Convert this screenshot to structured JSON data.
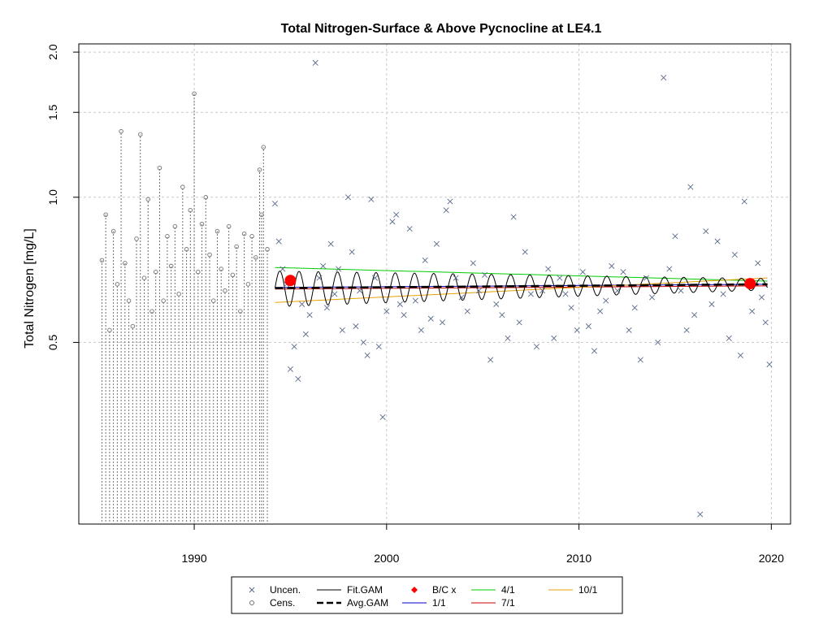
{
  "chart_data": {
    "type": "scatter",
    "title": "Total Nitrogen-Surface & Above Pycnocline at LE4.1",
    "xlabel": "",
    "ylabel": "Total Nitrogen [mg/L]",
    "x_scale": "linear",
    "y_scale": "log",
    "xlim": [
      1984.0,
      2021.0
    ],
    "ylim": [
      0.21,
      2.08
    ],
    "x_ticks": [
      1990,
      2000,
      2010,
      2020
    ],
    "y_ticks": [
      0.5,
      1.0,
      1.5,
      2.0
    ],
    "y_tick_labels": [
      "0.5",
      "1.0",
      "1.5",
      "2.0"
    ],
    "grid": true,
    "legend_position": "bottom-center",
    "legend": [
      {
        "label": "Uncen.",
        "kind": "x-marker",
        "color": "#5a6a8a"
      },
      {
        "label": "Cens.",
        "kind": "o-marker",
        "color": "#707070"
      },
      {
        "label": "Fit.GAM",
        "kind": "line",
        "color": "#000000"
      },
      {
        "label": "Avg.GAM",
        "kind": "dashed-line",
        "color": "#000000"
      },
      {
        "label": "B/C x",
        "kind": "diamond",
        "color": "#ff0000"
      },
      {
        "label": "1/1",
        "kind": "line",
        "color": "#0000cc"
      },
      {
        "label": "4/1",
        "kind": "line",
        "color": "#00cc00"
      },
      {
        "label": "7/1",
        "kind": "line",
        "color": "#cc0000"
      },
      {
        "label": "10/1",
        "kind": "line",
        "color": "#e6a000"
      }
    ],
    "colors": {
      "uncensored": "#5a6a8a",
      "censored": "#707070",
      "fit_gam": "#000000",
      "avg_gam": "#000000",
      "baseline_current": "#ff0000",
      "jan1": "#0000cc",
      "apr1": "#00cc00",
      "jul1": "#cc0000",
      "oct1": "#e6a000",
      "grid": "#c8c8c8"
    },
    "uncensored_points": [
      [
        1994.2,
        0.97
      ],
      [
        1994.4,
        0.81
      ],
      [
        1994.6,
        0.71
      ],
      [
        1994.8,
        0.66
      ],
      [
        1995.0,
        0.44
      ],
      [
        1995.2,
        0.49
      ],
      [
        1995.4,
        0.42
      ],
      [
        1995.6,
        0.6
      ],
      [
        1995.8,
        0.52
      ],
      [
        1996.0,
        0.57
      ],
      [
        1996.3,
        1.9
      ],
      [
        1996.5,
        0.68
      ],
      [
        1996.7,
        0.72
      ],
      [
        1996.9,
        0.59
      ],
      [
        1997.1,
        0.8
      ],
      [
        1997.3,
        0.63
      ],
      [
        1997.5,
        0.71
      ],
      [
        1997.7,
        0.53
      ],
      [
        1998.0,
        1.0
      ],
      [
        1998.2,
        0.77
      ],
      [
        1998.4,
        0.54
      ],
      [
        1998.6,
        0.64
      ],
      [
        1998.8,
        0.5
      ],
      [
        1999.0,
        0.47
      ],
      [
        1999.2,
        0.99
      ],
      [
        1999.4,
        0.68
      ],
      [
        1999.6,
        0.49
      ],
      [
        1999.8,
        0.35
      ],
      [
        2000.0,
        0.58
      ],
      [
        2000.3,
        0.89
      ],
      [
        2000.5,
        0.92
      ],
      [
        2000.7,
        0.6
      ],
      [
        2000.9,
        0.57
      ],
      [
        2001.2,
        0.86
      ],
      [
        2001.5,
        0.61
      ],
      [
        2001.8,
        0.53
      ],
      [
        2002.0,
        0.74
      ],
      [
        2002.3,
        0.56
      ],
      [
        2002.6,
        0.8
      ],
      [
        2002.9,
        0.55
      ],
      [
        2003.1,
        0.94
      ],
      [
        2003.3,
        0.98
      ],
      [
        2003.6,
        0.68
      ],
      [
        2003.9,
        0.62
      ],
      [
        2004.2,
        0.58
      ],
      [
        2004.5,
        0.73
      ],
      [
        2004.8,
        0.64
      ],
      [
        2005.1,
        0.69
      ],
      [
        2005.4,
        0.46
      ],
      [
        2005.7,
        0.6
      ],
      [
        2006.0,
        0.57
      ],
      [
        2006.3,
        0.51
      ],
      [
        2006.6,
        0.91
      ],
      [
        2006.9,
        0.55
      ],
      [
        2007.2,
        0.77
      ],
      [
        2007.5,
        0.63
      ],
      [
        2007.8,
        0.49
      ],
      [
        2008.1,
        0.64
      ],
      [
        2008.4,
        0.71
      ],
      [
        2008.7,
        0.51
      ],
      [
        2009.0,
        0.68
      ],
      [
        2009.3,
        0.63
      ],
      [
        2009.6,
        0.59
      ],
      [
        2009.9,
        0.53
      ],
      [
        2010.2,
        0.7
      ],
      [
        2010.5,
        0.54
      ],
      [
        2010.8,
        0.48
      ],
      [
        2011.1,
        0.58
      ],
      [
        2011.4,
        0.61
      ],
      [
        2011.7,
        0.72
      ],
      [
        2012.0,
        0.64
      ],
      [
        2012.3,
        0.7
      ],
      [
        2012.6,
        0.53
      ],
      [
        2012.9,
        0.59
      ],
      [
        2013.2,
        0.46
      ],
      [
        2013.5,
        0.68
      ],
      [
        2013.8,
        0.62
      ],
      [
        2014.1,
        0.5
      ],
      [
        2014.4,
        1.77
      ],
      [
        2014.7,
        0.71
      ],
      [
        2015.0,
        0.83
      ],
      [
        2015.3,
        0.64
      ],
      [
        2015.6,
        0.53
      ],
      [
        2015.8,
        1.05
      ],
      [
        2016.0,
        0.57
      ],
      [
        2016.3,
        0.22
      ],
      [
        2016.6,
        0.85
      ],
      [
        2016.9,
        0.6
      ],
      [
        2017.2,
        0.81
      ],
      [
        2017.5,
        0.63
      ],
      [
        2017.8,
        0.51
      ],
      [
        2018.1,
        0.76
      ],
      [
        2018.4,
        0.47
      ],
      [
        2018.6,
        0.98
      ],
      [
        2018.8,
        0.66
      ],
      [
        2019.0,
        0.58
      ],
      [
        2019.3,
        0.73
      ],
      [
        2019.5,
        0.62
      ],
      [
        2019.7,
        0.55
      ],
      [
        2019.9,
        0.45
      ]
    ],
    "censored_points": [
      [
        1985.2,
        0.74
      ],
      [
        1985.4,
        0.92
      ],
      [
        1985.6,
        0.53
      ],
      [
        1985.8,
        0.85
      ],
      [
        1986.0,
        0.66
      ],
      [
        1986.2,
        1.37
      ],
      [
        1986.4,
        0.73
      ],
      [
        1986.6,
        0.61
      ],
      [
        1986.8,
        0.54
      ],
      [
        1987.0,
        0.82
      ],
      [
        1987.2,
        1.35
      ],
      [
        1987.4,
        0.68
      ],
      [
        1987.6,
        0.99
      ],
      [
        1987.8,
        0.58
      ],
      [
        1988.0,
        0.7
      ],
      [
        1988.2,
        1.15
      ],
      [
        1988.4,
        0.61
      ],
      [
        1988.6,
        0.83
      ],
      [
        1988.8,
        0.72
      ],
      [
        1989.0,
        0.87
      ],
      [
        1989.2,
        0.63
      ],
      [
        1989.4,
        1.05
      ],
      [
        1989.6,
        0.78
      ],
      [
        1989.8,
        0.94
      ],
      [
        1990.0,
        1.64
      ],
      [
        1990.2,
        0.7
      ],
      [
        1990.4,
        0.88
      ],
      [
        1990.6,
        1.0
      ],
      [
        1990.8,
        0.76
      ],
      [
        1991.0,
        0.61
      ],
      [
        1991.2,
        0.85
      ],
      [
        1991.4,
        0.71
      ],
      [
        1991.6,
        0.64
      ],
      [
        1991.8,
        0.87
      ],
      [
        1992.0,
        0.69
      ],
      [
        1992.2,
        0.79
      ],
      [
        1992.4,
        0.58
      ],
      [
        1992.6,
        0.84
      ],
      [
        1992.8,
        0.66
      ],
      [
        1993.0,
        0.83
      ],
      [
        1993.2,
        0.75
      ],
      [
        1993.4,
        1.14
      ],
      [
        1993.5,
        0.92
      ],
      [
        1993.6,
        1.27
      ],
      [
        1993.8,
        0.78
      ]
    ],
    "fit_gam": {
      "start": 1994.2,
      "end": 2019.8,
      "trend_start": 0.648,
      "trend_end": 0.66,
      "amplitude_start": 0.055,
      "amplitude_end": 0.018,
      "cycles_per_year": 1
    },
    "avg_gam": {
      "start": 1994.2,
      "end": 2019.8,
      "value_start": 0.648,
      "value_end": 0.66
    },
    "seasonal_lines": [
      {
        "name": "1/1",
        "start": 0.65,
        "end": 0.66
      },
      {
        "name": "4/1",
        "start": 0.715,
        "end": 0.67
      },
      {
        "name": "7/1",
        "start": 0.645,
        "end": 0.655
      },
      {
        "name": "10/1",
        "start": 0.605,
        "end": 0.68
      }
    ],
    "baseline_current_points": [
      [
        1995.0,
        0.672
      ],
      [
        2018.9,
        0.662
      ]
    ]
  }
}
